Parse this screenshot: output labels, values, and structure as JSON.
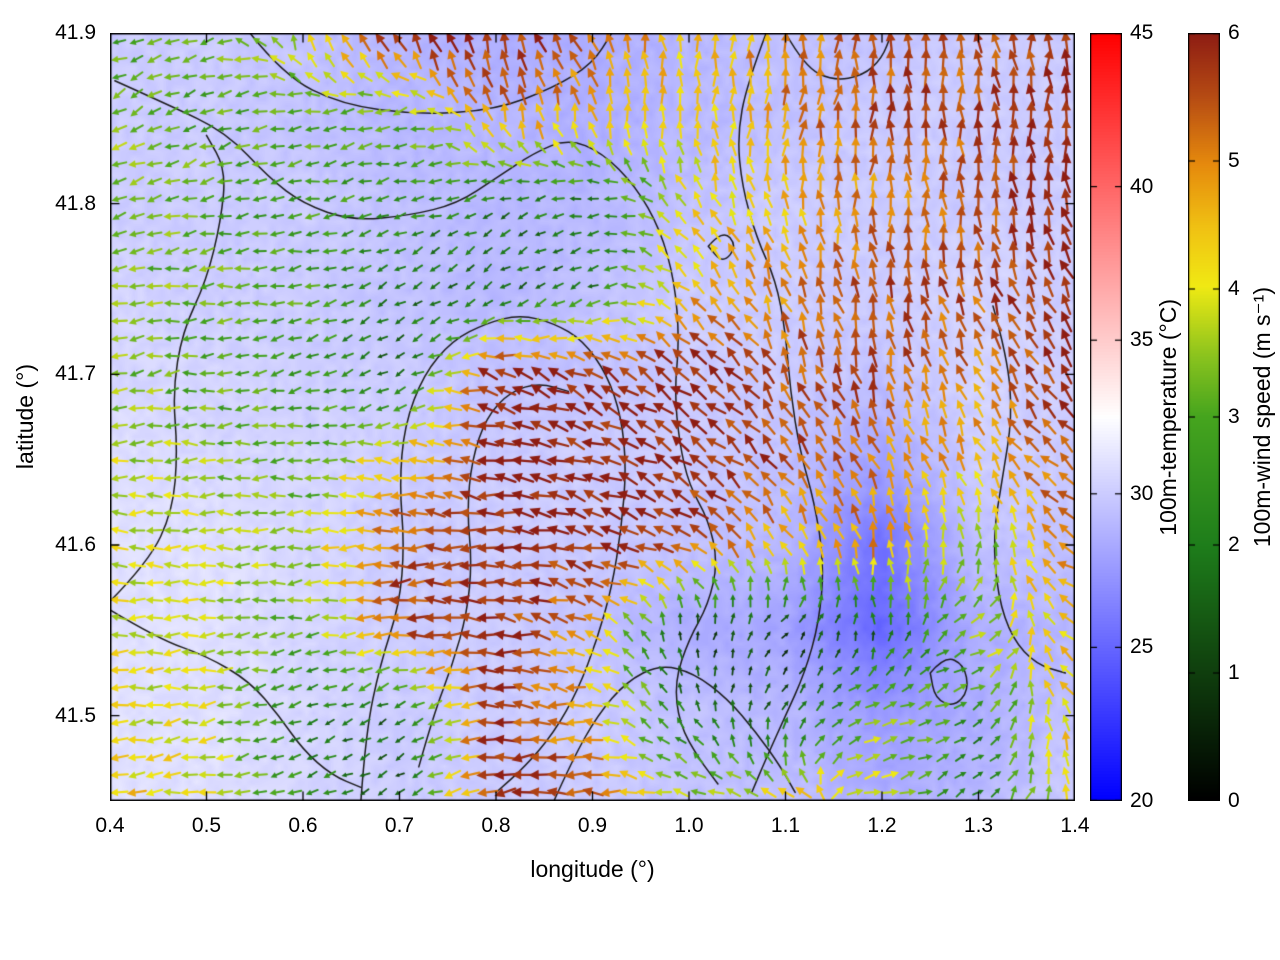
{
  "figure": {
    "background": "#ffffff",
    "contour_color": "#1b1b1b"
  },
  "chart_data": {
    "type": "heatmap",
    "subtype": "temperature field with wind vector quiver and contour lines",
    "title": "",
    "xlabel": "longitude (°)",
    "ylabel": "latitude (°)",
    "xlim": [
      0.4,
      1.4
    ],
    "ylim": [
      41.45,
      41.9
    ],
    "x_ticks": [
      0.4,
      0.5,
      0.6,
      0.7,
      0.8,
      0.9,
      1.0,
      1.1,
      1.2,
      1.3,
      1.4
    ],
    "x_tick_labels": [
      "0.4",
      "0.5",
      "0.6",
      "0.7",
      "0.8",
      "0.9",
      "1.0",
      "1.1",
      "1.2",
      "1.3",
      "1.4"
    ],
    "y_ticks": [
      41.5,
      41.6,
      41.7,
      41.8,
      41.9
    ],
    "y_tick_labels": [
      "41.5",
      "41.6",
      "41.7",
      "41.8",
      "41.9"
    ],
    "colorbars": [
      {
        "label": "100m-temperature (°C)",
        "min": 20,
        "max": 45,
        "ticks": [
          20,
          25,
          30,
          35,
          40,
          45
        ],
        "tick_labels": [
          "20",
          "25",
          "30",
          "35",
          "40",
          "45"
        ],
        "stops": [
          [
            0.0,
            "#0000ff"
          ],
          [
            0.25,
            "#8080ff"
          ],
          [
            0.5,
            "#ffffff"
          ],
          [
            0.75,
            "#ff8080"
          ],
          [
            1.0,
            "#ff0000"
          ]
        ]
      },
      {
        "label": "100m-wind speed (m s⁻¹)",
        "min": 0,
        "max": 6,
        "ticks": [
          0,
          1,
          2,
          3,
          4,
          5,
          6
        ],
        "tick_labels": [
          "0",
          "1",
          "2",
          "3",
          "4",
          "5",
          "6"
        ],
        "stops": [
          [
            0.0,
            "#000000"
          ],
          [
            0.17,
            "#10400e"
          ],
          [
            0.33,
            "#1e7d1b"
          ],
          [
            0.5,
            "#46a51f"
          ],
          [
            0.58,
            "#8cc41e"
          ],
          [
            0.67,
            "#f0ea14"
          ],
          [
            0.75,
            "#f0c013"
          ],
          [
            0.83,
            "#e68a0d"
          ],
          [
            0.92,
            "#b54a14"
          ],
          [
            1.0,
            "#8e1d13"
          ]
        ]
      }
    ],
    "grid": {
      "lon": [
        0.4,
        0.5,
        0.6,
        0.7,
        0.8,
        0.9,
        1.0,
        1.1,
        1.2,
        1.3,
        1.4
      ],
      "lat": [
        41.9,
        41.85,
        41.8,
        41.75,
        41.7,
        41.65,
        41.6,
        41.55,
        41.5,
        41.45
      ],
      "temperature_c": [
        [
          30,
          30,
          29.5,
          29,
          28.5,
          28.5,
          29,
          29.5,
          29.5,
          30,
          30
        ],
        [
          30,
          30,
          29.5,
          29,
          29,
          28.5,
          29,
          29.5,
          30,
          30,
          30
        ],
        [
          30,
          30,
          30,
          29.5,
          29,
          29,
          29.5,
          30,
          30,
          30,
          30
        ],
        [
          30.5,
          30,
          30,
          29.5,
          29,
          29.5,
          30,
          30,
          30,
          30.5,
          30
        ],
        [
          30.5,
          30.5,
          30,
          30,
          29.5,
          29.5,
          30,
          30,
          29.5,
          30.5,
          30
        ],
        [
          31,
          30.5,
          30.5,
          30,
          30,
          30,
          30,
          29.5,
          28,
          30,
          30
        ],
        [
          31,
          31,
          30.5,
          30,
          30,
          30,
          29.5,
          29,
          25.5,
          29.5,
          29.5
        ],
        [
          31,
          31,
          30.5,
          30,
          30,
          29.5,
          28.5,
          28,
          25,
          28.5,
          29
        ],
        [
          31,
          31,
          30.5,
          30,
          30,
          30,
          29.5,
          29,
          27.5,
          28.5,
          29.5
        ],
        [
          31,
          31,
          30.5,
          30,
          30,
          30,
          29.5,
          29.5,
          28.5,
          29,
          30
        ]
      ],
      "wind_speed_ms": [
        [
          3.0,
          3.0,
          4.0,
          6.0,
          6.0,
          5.5,
          4.5,
          5.0,
          5.5,
          5.5,
          6.0
        ],
        [
          3.5,
          3.0,
          3.0,
          3.0,
          5.0,
          4.5,
          4.0,
          5.0,
          5.5,
          5.5,
          6.0
        ],
        [
          3.5,
          3.0,
          2.8,
          2.5,
          2.0,
          2.0,
          4.0,
          4.5,
          5.0,
          5.5,
          6.0
        ],
        [
          3.5,
          3.2,
          3.0,
          1.8,
          1.5,
          2.0,
          4.5,
          5.0,
          5.5,
          5.5,
          6.0
        ],
        [
          3.5,
          3.0,
          2.8,
          1.5,
          6.0,
          6.0,
          6.0,
          5.5,
          5.5,
          5.0,
          6.0
        ],
        [
          3.8,
          3.5,
          3.0,
          4.5,
          6.0,
          6.0,
          6.0,
          5.5,
          5.0,
          4.5,
          5.5
        ],
        [
          4.0,
          3.8,
          3.5,
          5.5,
          6.0,
          6.0,
          5.5,
          4.5,
          5.0,
          3.0,
          5.5
        ],
        [
          4.0,
          4.0,
          3.0,
          5.5,
          6.0,
          4.5,
          1.0,
          0.8,
          1.5,
          3.5,
          4.5
        ],
        [
          4.0,
          3.8,
          2.0,
          1.5,
          6.0,
          4.5,
          2.0,
          1.5,
          3.5,
          2.5,
          4.5
        ],
        [
          4.5,
          4.0,
          2.5,
          1.5,
          6.0,
          5.5,
          3.5,
          4.5,
          4.0,
          1.5,
          4.5
        ]
      ],
      "wind_dir_deg": [
        [
          200,
          190,
          100,
          110,
          100,
          120,
          90,
          80,
          90,
          100,
          90
        ],
        [
          210,
          200,
          190,
          200,
          110,
          100,
          90,
          80,
          85,
          95,
          90
        ],
        [
          200,
          195,
          190,
          195,
          200,
          190,
          120,
          100,
          90,
          95,
          100
        ],
        [
          190,
          185,
          190,
          210,
          220,
          200,
          135,
          110,
          100,
          110,
          120
        ],
        [
          190,
          185,
          200,
          210,
          160,
          150,
          140,
          120,
          100,
          110,
          130
        ],
        [
          185,
          180,
          185,
          170,
          170,
          160,
          150,
          130,
          110,
          120,
          140
        ],
        [
          180,
          180,
          185,
          180,
          175,
          165,
          150,
          120,
          100,
          90,
          150
        ],
        [
          180,
          180,
          190,
          185,
          175,
          160,
          90,
          45,
          90,
          20,
          150
        ],
        [
          185,
          190,
          200,
          210,
          180,
          170,
          120,
          60,
          10,
          30,
          120
        ],
        [
          190,
          190,
          200,
          210,
          185,
          180,
          170,
          160,
          10,
          40,
          90
        ]
      ]
    },
    "contours": [
      [
        [
          0.545,
          41.9
        ],
        [
          0.58,
          41.875
        ],
        [
          0.64,
          41.858
        ],
        [
          0.72,
          41.852
        ],
        [
          0.8,
          41.855
        ],
        [
          0.86,
          41.868
        ],
        [
          0.9,
          41.882
        ],
        [
          0.92,
          41.9
        ]
      ],
      [
        [
          0.405,
          41.872
        ],
        [
          0.46,
          41.858
        ],
        [
          0.52,
          41.842
        ],
        [
          0.565,
          41.815
        ],
        [
          0.6,
          41.8
        ],
        [
          0.65,
          41.79
        ],
        [
          0.71,
          41.793
        ],
        [
          0.76,
          41.8
        ],
        [
          0.8,
          41.815
        ],
        [
          0.84,
          41.83
        ],
        [
          0.875,
          41.838
        ],
        [
          0.91,
          41.83
        ],
        [
          0.945,
          41.81
        ],
        [
          0.97,
          41.785
        ],
        [
          0.985,
          41.755
        ],
        [
          0.99,
          41.72
        ],
        [
          0.985,
          41.69
        ],
        [
          0.99,
          41.66
        ],
        [
          1.0,
          41.635
        ],
        [
          1.02,
          41.615
        ],
        [
          1.03,
          41.59
        ],
        [
          1.02,
          41.565
        ],
        [
          1.0,
          41.545
        ],
        [
          0.985,
          41.52
        ],
        [
          0.99,
          41.495
        ],
        [
          1.01,
          41.475
        ],
        [
          1.03,
          41.46
        ]
      ],
      [
        [
          0.4,
          41.567
        ],
        [
          0.44,
          41.59
        ],
        [
          0.465,
          41.62
        ],
        [
          0.47,
          41.655
        ],
        [
          0.465,
          41.69
        ],
        [
          0.475,
          41.725
        ],
        [
          0.5,
          41.755
        ],
        [
          0.515,
          41.79
        ],
        [
          0.52,
          41.82
        ],
        [
          0.5,
          41.84
        ]
      ],
      [
        [
          0.66,
          41.45
        ],
        [
          0.665,
          41.49
        ],
        [
          0.68,
          41.53
        ],
        [
          0.7,
          41.565
        ],
        [
          0.705,
          41.6
        ],
        [
          0.7,
          41.635
        ],
        [
          0.705,
          41.67
        ],
        [
          0.725,
          41.7
        ],
        [
          0.755,
          41.72
        ],
        [
          0.79,
          41.73
        ],
        [
          0.825,
          41.735
        ],
        [
          0.86,
          41.73
        ],
        [
          0.89,
          41.72
        ],
        [
          0.915,
          41.7
        ],
        [
          0.93,
          41.675
        ],
        [
          0.935,
          41.645
        ],
        [
          0.93,
          41.61
        ],
        [
          0.92,
          41.575
        ],
        [
          0.905,
          41.545
        ],
        [
          0.885,
          41.515
        ],
        [
          0.86,
          41.49
        ],
        [
          0.83,
          41.47
        ],
        [
          0.8,
          41.455
        ]
      ],
      [
        [
          0.72,
          41.47
        ],
        [
          0.735,
          41.5
        ],
        [
          0.755,
          41.53
        ],
        [
          0.77,
          41.56
        ],
        [
          0.775,
          41.59
        ],
        [
          0.77,
          41.62
        ],
        [
          0.775,
          41.65
        ],
        [
          0.79,
          41.675
        ],
        [
          0.815,
          41.69
        ],
        [
          0.845,
          41.695
        ],
        [
          0.875,
          41.69
        ]
      ],
      [
        [
          1.08,
          41.9
        ],
        [
          1.06,
          41.87
        ],
        [
          1.05,
          41.84
        ],
        [
          1.055,
          41.81
        ],
        [
          1.07,
          41.78
        ],
        [
          1.09,
          41.755
        ],
        [
          1.1,
          41.725
        ],
        [
          1.105,
          41.69
        ],
        [
          1.115,
          41.655
        ],
        [
          1.13,
          41.625
        ],
        [
          1.14,
          41.59
        ],
        [
          1.135,
          41.555
        ],
        [
          1.12,
          41.525
        ],
        [
          1.1,
          41.5
        ],
        [
          1.08,
          41.475
        ],
        [
          1.065,
          41.455
        ]
      ],
      [
        [
          1.02,
          41.775
        ],
        [
          1.035,
          41.785
        ],
        [
          1.05,
          41.775
        ],
        [
          1.035,
          41.765
        ],
        [
          1.02,
          41.775
        ]
      ],
      [
        [
          1.315,
          41.74
        ],
        [
          1.33,
          41.71
        ],
        [
          1.335,
          41.675
        ],
        [
          1.325,
          41.64
        ],
        [
          1.315,
          41.605
        ],
        [
          1.32,
          41.57
        ],
        [
          1.335,
          41.545
        ],
        [
          1.36,
          41.53
        ],
        [
          1.39,
          41.525
        ]
      ],
      [
        [
          0.4,
          41.562
        ],
        [
          0.45,
          41.545
        ],
        [
          0.5,
          41.535
        ],
        [
          0.545,
          41.52
        ],
        [
          0.575,
          41.5
        ],
        [
          0.6,
          41.48
        ],
        [
          0.63,
          41.465
        ],
        [
          0.66,
          41.458
        ]
      ],
      [
        [
          0.86,
          41.45
        ],
        [
          0.88,
          41.475
        ],
        [
          0.905,
          41.5
        ],
        [
          0.935,
          41.52
        ],
        [
          0.97,
          41.53
        ],
        [
          1.005,
          41.525
        ],
        [
          1.04,
          41.51
        ],
        [
          1.07,
          41.49
        ],
        [
          1.095,
          41.47
        ],
        [
          1.11,
          41.455
        ]
      ],
      [
        [
          1.25,
          41.525
        ],
        [
          1.265,
          41.535
        ],
        [
          1.285,
          41.53
        ],
        [
          1.29,
          41.515
        ],
        [
          1.275,
          41.505
        ],
        [
          1.255,
          41.51
        ],
        [
          1.25,
          41.525
        ]
      ],
      [
        [
          1.1,
          41.9
        ],
        [
          1.12,
          41.88
        ],
        [
          1.15,
          41.872
        ],
        [
          1.18,
          41.875
        ],
        [
          1.2,
          41.885
        ],
        [
          1.21,
          41.9
        ]
      ]
    ]
  }
}
